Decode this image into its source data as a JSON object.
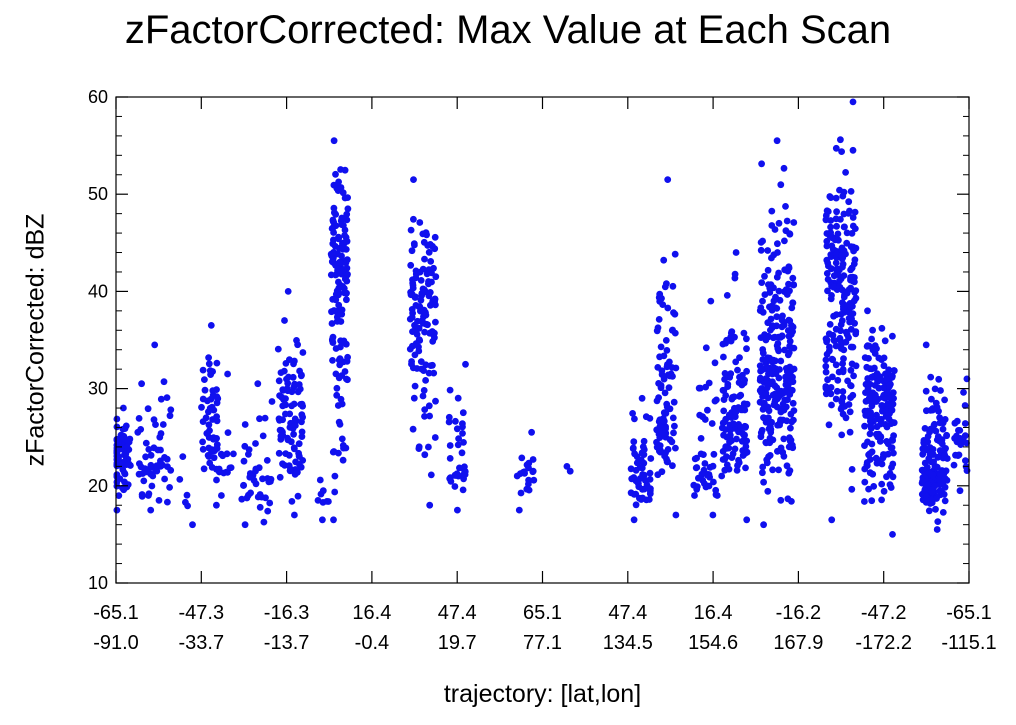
{
  "title": "zFactorCorrected: Max Value at Each Scan",
  "chart_data": {
    "type": "scatter",
    "title": "zFactorCorrected: Max Value at Each Scan",
    "xlabel": "trajectory: [lat,lon]",
    "ylabel": "zFactorCorrected: dBZ",
    "ylim": [
      10,
      60
    ],
    "yticks": [
      10,
      20,
      30,
      40,
      50,
      60
    ],
    "xlim": [
      0,
      1
    ],
    "xtick_positions": [
      0,
      0.1,
      0.2,
      0.3,
      0.4,
      0.5,
      0.6,
      0.7,
      0.8,
      0.9,
      1.0
    ],
    "xtick_labels": [
      [
        "-65.1",
        "-91.0"
      ],
      [
        "-47.3",
        "-33.7"
      ],
      [
        "-16.3",
        "-13.7"
      ],
      [
        "16.4",
        "-0.4"
      ],
      [
        "47.4",
        "19.7"
      ],
      [
        "65.1",
        "77.1"
      ],
      [
        "47.4",
        "134.5"
      ],
      [
        "16.4",
        "154.6"
      ],
      [
        "-16.2",
        "167.9"
      ],
      [
        "-47.2",
        "-172.2"
      ],
      [
        "-65.1",
        "-115.1"
      ]
    ],
    "grid": false,
    "marker_color": "#1010ee",
    "clusters": [
      {
        "x": 0.005,
        "spread": 0.012,
        "ymin": 17.5,
        "ymax": 28,
        "center": 23,
        "n": 70
      },
      {
        "x": 0.035,
        "spread": 0.01,
        "ymin": 17.5,
        "ymax": 30.5,
        "center": 22,
        "n": 30
      },
      {
        "x": 0.055,
        "spread": 0.01,
        "ymin": 18.5,
        "ymax": 34.5,
        "center": 23,
        "n": 25
      },
      {
        "x": 0.08,
        "spread": 0.02,
        "ymin": 16,
        "ymax": 23,
        "center": 20,
        "n": 8
      },
      {
        "x": 0.11,
        "spread": 0.01,
        "ymin": 18,
        "ymax": 36.5,
        "center": 26,
        "n": 55
      },
      {
        "x": 0.13,
        "spread": 0.01,
        "ymin": 19,
        "ymax": 31.5,
        "center": 22,
        "n": 15
      },
      {
        "x": 0.165,
        "spread": 0.018,
        "ymin": 16,
        "ymax": 30.5,
        "center": 21,
        "n": 40
      },
      {
        "x": 0.205,
        "spread": 0.015,
        "ymin": 17,
        "ymax": 40,
        "center": 27,
        "n": 95
      },
      {
        "x": 0.245,
        "spread": 0.012,
        "ymin": 16.5,
        "ymax": 21,
        "center": 19,
        "n": 10
      },
      {
        "x": 0.262,
        "spread": 0.01,
        "ymin": 16.5,
        "ymax": 55.5,
        "center": 42,
        "n": 150
      },
      {
        "x": 0.36,
        "spread": 0.015,
        "ymin": 18,
        "ymax": 51.5,
        "center": 37,
        "n": 130
      },
      {
        "x": 0.4,
        "spread": 0.01,
        "ymin": 17.5,
        "ymax": 32.5,
        "center": 22,
        "n": 35
      },
      {
        "x": 0.48,
        "spread": 0.01,
        "ymin": 17.5,
        "ymax": 25.5,
        "center": 21,
        "n": 22
      },
      {
        "x": 0.53,
        "spread": 0.005,
        "ymin": 21.5,
        "ymax": 22,
        "center": 21.8,
        "n": 2
      },
      {
        "x": 0.615,
        "spread": 0.012,
        "ymin": 16.5,
        "ymax": 29,
        "center": 21,
        "n": 55
      },
      {
        "x": 0.645,
        "spread": 0.012,
        "ymin": 17,
        "ymax": 51.5,
        "center": 28,
        "n": 90
      },
      {
        "x": 0.69,
        "spread": 0.015,
        "ymin": 17,
        "ymax": 39,
        "center": 22,
        "n": 45
      },
      {
        "x": 0.725,
        "spread": 0.015,
        "ymin": 16.5,
        "ymax": 44,
        "center": 27,
        "n": 110
      },
      {
        "x": 0.775,
        "spread": 0.02,
        "ymin": 16,
        "ymax": 55.5,
        "center": 32,
        "n": 260
      },
      {
        "x": 0.85,
        "spread": 0.018,
        "ymin": 16.5,
        "ymax": 59.5,
        "center": 40,
        "n": 220
      },
      {
        "x": 0.895,
        "spread": 0.018,
        "ymin": 15,
        "ymax": 38,
        "center": 28,
        "n": 180
      },
      {
        "x": 0.96,
        "spread": 0.015,
        "ymin": 15.5,
        "ymax": 34.5,
        "center": 22,
        "n": 150
      },
      {
        "x": 0.99,
        "spread": 0.008,
        "ymin": 19.5,
        "ymax": 31,
        "center": 25,
        "n": 25
      }
    ]
  }
}
